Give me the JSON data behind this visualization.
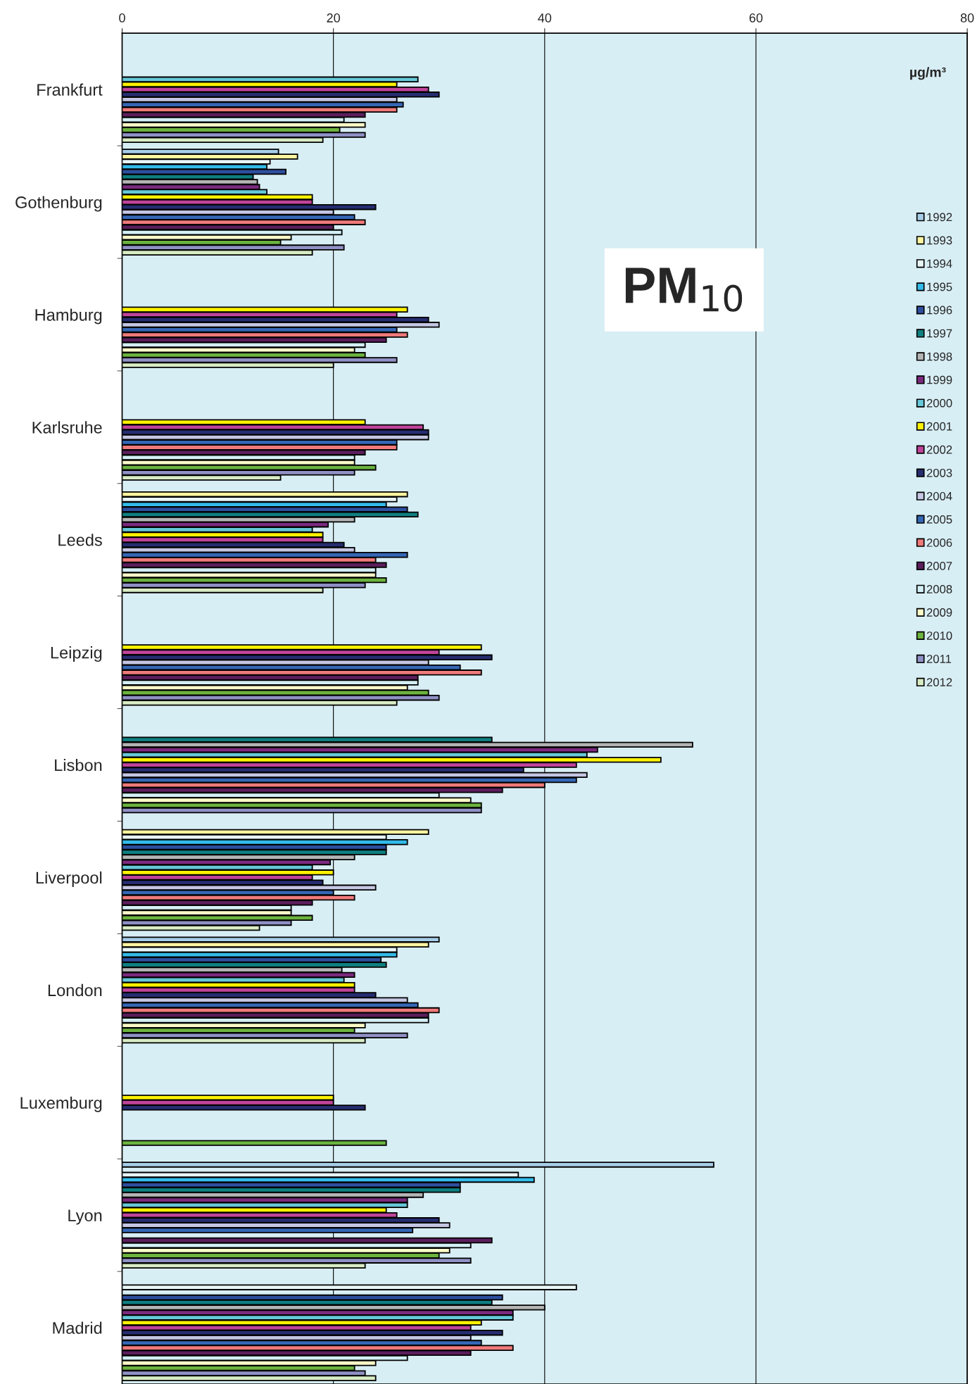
{
  "chart_data": {
    "type": "bar",
    "orientation": "horizontal",
    "title": "PM$_{10}$",
    "annotations": [
      "µg/m³"
    ],
    "categories": [
      "Frankfurt",
      "Gothenburg",
      "Hamburg",
      "Karlsruhe",
      "Leeds",
      "Leipzig",
      "Lisbon",
      "Liverpool",
      "London",
      "Luxemburg",
      "Lyon",
      "Madrid"
    ],
    "xlim": [
      0,
      80
    ],
    "xticks": [
      0,
      20,
      40,
      60,
      80
    ],
    "grid": "x",
    "legend": "right",
    "series": [
      {
        "name": "1992",
        "color": "#a6cde8",
        "values": [
          null,
          14.8,
          null,
          null,
          null,
          null,
          null,
          null,
          30,
          null,
          56,
          null
        ]
      },
      {
        "name": "1993",
        "color": "#fdf5a0",
        "values": [
          null,
          16.6,
          null,
          null,
          27,
          null,
          null,
          29,
          29,
          null,
          null,
          null
        ]
      },
      {
        "name": "1994",
        "color": "#e8f6f8",
        "values": [
          null,
          14,
          null,
          null,
          26,
          null,
          null,
          25,
          26,
          null,
          37.5,
          43
        ]
      },
      {
        "name": "1995",
        "color": "#33bbea",
        "values": [
          null,
          13.7,
          null,
          null,
          25,
          null,
          null,
          27,
          26,
          null,
          39,
          null
        ]
      },
      {
        "name": "1996",
        "color": "#2e4f9e",
        "values": [
          null,
          15.5,
          null,
          null,
          27,
          null,
          null,
          25,
          24.5,
          null,
          32,
          36
        ]
      },
      {
        "name": "1997",
        "color": "#0f7f80",
        "values": [
          null,
          12.4,
          null,
          null,
          28,
          null,
          35,
          25,
          25,
          null,
          32,
          35
        ]
      },
      {
        "name": "1998",
        "color": "#b4b4b4",
        "values": [
          null,
          12.8,
          null,
          null,
          22,
          null,
          54,
          22,
          20.8,
          null,
          28.5,
          40
        ]
      },
      {
        "name": "1999",
        "color": "#7b2a7e",
        "values": [
          null,
          13,
          null,
          null,
          19.5,
          null,
          45,
          19.7,
          22,
          null,
          27,
          37
        ]
      },
      {
        "name": "2000",
        "color": "#66c8d8",
        "values": [
          28,
          13.7,
          null,
          null,
          18,
          null,
          44,
          18,
          21,
          null,
          27,
          37
        ]
      },
      {
        "name": "2001",
        "color": "#fff200",
        "values": [
          26,
          18,
          27,
          23,
          19,
          34,
          51,
          20,
          22,
          20,
          25,
          34
        ]
      },
      {
        "name": "2002",
        "color": "#c0449a",
        "values": [
          29,
          18,
          26,
          28.5,
          19,
          30,
          43,
          18,
          22,
          20,
          26,
          33
        ]
      },
      {
        "name": "2003",
        "color": "#262d70",
        "values": [
          30,
          24,
          29,
          29,
          21,
          35,
          38,
          19,
          24,
          23,
          30,
          36
        ]
      },
      {
        "name": "2004",
        "color": "#c4c6e3",
        "values": [
          26,
          20,
          30,
          29,
          22,
          29,
          44,
          24,
          27,
          null,
          31,
          33
        ]
      },
      {
        "name": "2005",
        "color": "#3567b5",
        "values": [
          26.6,
          22,
          26,
          26,
          27,
          32,
          43,
          20,
          28,
          null,
          27.5,
          34
        ]
      },
      {
        "name": "2006",
        "color": "#f07a7a",
        "values": [
          26,
          23,
          27,
          26,
          24,
          34,
          40,
          22,
          30,
          null,
          null,
          37
        ]
      },
      {
        "name": "2007",
        "color": "#5b1e5c",
        "values": [
          23,
          20,
          25,
          23,
          25,
          28,
          36,
          18,
          29,
          null,
          35,
          33
        ]
      },
      {
        "name": "2008",
        "color": "#d3eff5",
        "values": [
          21,
          20.8,
          23,
          22,
          24,
          28,
          30,
          16,
          29,
          null,
          33,
          27
        ]
      },
      {
        "name": "2009",
        "color": "#fafac8",
        "values": [
          23,
          16,
          22,
          22,
          24,
          27,
          33,
          16,
          23,
          null,
          31,
          24
        ]
      },
      {
        "name": "2010",
        "color": "#6cb33f",
        "values": [
          20.6,
          15,
          23,
          24,
          25,
          29,
          34,
          18,
          22,
          25,
          30,
          22
        ]
      },
      {
        "name": "2011",
        "color": "#8f90c4",
        "values": [
          23,
          21,
          26,
          22,
          23,
          30,
          34,
          16,
          27,
          null,
          33,
          23
        ]
      },
      {
        "name": "2012",
        "color": "#d8ecc4",
        "values": [
          19,
          18,
          20,
          15,
          19,
          26,
          null,
          13,
          23,
          null,
          23,
          24
        ]
      }
    ]
  }
}
